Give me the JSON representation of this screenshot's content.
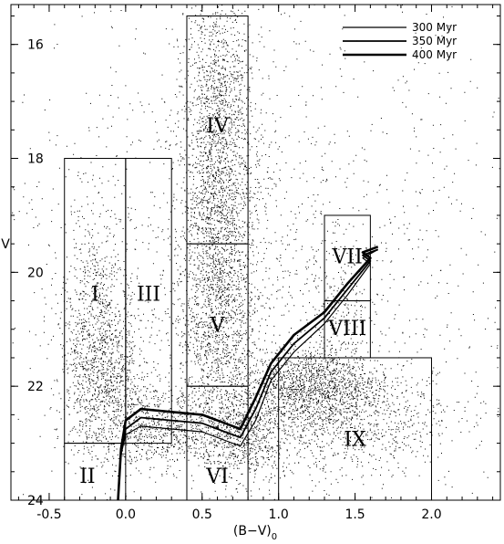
{
  "chart_data": {
    "type": "scatter",
    "title": "",
    "xlabel": "(B−V)",
    "xlabel_subscript": "0",
    "ylabel": "V",
    "xlim": [
      -0.75,
      2.45
    ],
    "ylim": [
      24.0,
      15.3
    ],
    "y_inverted": true,
    "grid": false,
    "x_ticks": [
      -0.5,
      0.0,
      0.5,
      1.0,
      1.5,
      2.0
    ],
    "x_tick_labels": [
      "-0.5",
      "0.0",
      "0.5",
      "1.0",
      "1.5",
      "2.0"
    ],
    "y_ticks": [
      16,
      18,
      20,
      22,
      24
    ],
    "y_tick_labels": [
      "16",
      "18",
      "20",
      "22",
      "24"
    ],
    "legend": {
      "position": "top-right",
      "entries": [
        {
          "label": "300 Myr",
          "weight": "thin"
        },
        {
          "label": "350 Myr",
          "weight": "medium"
        },
        {
          "label": "400 Myr",
          "weight": "thick"
        }
      ]
    },
    "regions": [
      {
        "label": "I",
        "x": [
          -0.4,
          0.0
        ],
        "y": [
          18.0,
          23.0
        ],
        "label_at": [
          -0.2,
          20.4
        ]
      },
      {
        "label": "II",
        "x": [
          -0.4,
          0.0
        ],
        "y": [
          23.0,
          24.0
        ],
        "label_at": [
          -0.25,
          23.6
        ]
      },
      {
        "label": "III",
        "x": [
          0.0,
          0.3
        ],
        "y": [
          18.0,
          23.0
        ],
        "label_at": [
          0.15,
          20.4
        ]
      },
      {
        "label": "IV",
        "x": [
          0.4,
          0.8
        ],
        "y": [
          15.5,
          19.5
        ],
        "label_at": [
          0.6,
          17.45
        ]
      },
      {
        "label": "V",
        "x": [
          0.4,
          0.8
        ],
        "y": [
          19.5,
          22.0
        ],
        "label_at": [
          0.6,
          20.95
        ]
      },
      {
        "label": "VI",
        "x": [
          0.4,
          0.8
        ],
        "y": [
          22.0,
          24.0
        ],
        "label_at": [
          0.6,
          23.6
        ]
      },
      {
        "label": "VII",
        "x": [
          1.3,
          1.6
        ],
        "y": [
          19.0,
          20.5
        ],
        "label_at": [
          1.45,
          19.75
        ]
      },
      {
        "label": "VIII",
        "x": [
          1.3,
          1.6
        ],
        "y": [
          20.5,
          21.5
        ],
        "label_at": [
          1.45,
          21.0
        ]
      },
      {
        "label": "IX",
        "x": [
          1.0,
          2.0
        ],
        "y": [
          21.5,
          24.0
        ],
        "label_at": [
          1.5,
          22.95
        ]
      }
    ],
    "series": [
      {
        "name": "300 Myr",
        "points": [
          [
            -0.05,
            24.0
          ],
          [
            -0.03,
            23.2
          ],
          [
            0.0,
            22.85
          ],
          [
            0.1,
            22.7
          ],
          [
            0.3,
            22.75
          ],
          [
            0.5,
            22.8
          ],
          [
            0.65,
            22.95
          ],
          [
            0.75,
            23.05
          ],
          [
            0.85,
            22.6
          ],
          [
            0.95,
            21.9
          ],
          [
            1.1,
            21.4
          ],
          [
            1.3,
            20.9
          ],
          [
            1.45,
            20.4
          ],
          [
            1.6,
            19.85
          ],
          [
            1.55,
            19.75
          ],
          [
            1.65,
            19.6
          ]
        ]
      },
      {
        "name": "350 Myr",
        "points": [
          [
            -0.05,
            24.0
          ],
          [
            -0.03,
            23.15
          ],
          [
            0.0,
            22.75
          ],
          [
            0.1,
            22.55
          ],
          [
            0.3,
            22.6
          ],
          [
            0.5,
            22.65
          ],
          [
            0.65,
            22.8
          ],
          [
            0.75,
            22.9
          ],
          [
            0.85,
            22.4
          ],
          [
            0.95,
            21.75
          ],
          [
            1.1,
            21.25
          ],
          [
            1.3,
            20.8
          ],
          [
            1.45,
            20.3
          ],
          [
            1.6,
            19.8
          ],
          [
            1.55,
            19.7
          ],
          [
            1.65,
            19.6
          ]
        ]
      },
      {
        "name": "400 Myr",
        "points": [
          [
            -0.05,
            24.0
          ],
          [
            -0.03,
            23.1
          ],
          [
            0.0,
            22.6
          ],
          [
            0.1,
            22.4
          ],
          [
            0.3,
            22.45
          ],
          [
            0.5,
            22.5
          ],
          [
            0.65,
            22.65
          ],
          [
            0.75,
            22.75
          ],
          [
            0.85,
            22.2
          ],
          [
            0.95,
            21.6
          ],
          [
            1.1,
            21.1
          ],
          [
            1.3,
            20.7
          ],
          [
            1.45,
            20.2
          ],
          [
            1.6,
            19.75
          ],
          [
            1.55,
            19.65
          ],
          [
            1.65,
            19.55
          ]
        ]
      }
    ],
    "point_clouds": [
      {
        "cx": 0.6,
        "cy": 16.8,
        "sx": 0.12,
        "sy": 0.9,
        "n": 900
      },
      {
        "cx": 0.6,
        "cy": 18.9,
        "sx": 0.12,
        "sy": 0.9,
        "n": 1100
      },
      {
        "cx": 0.6,
        "cy": 21.0,
        "sx": 0.13,
        "sy": 0.9,
        "n": 1100
      },
      {
        "cx": -0.15,
        "cy": 21.8,
        "sx": 0.14,
        "sy": 0.8,
        "n": 1100
      },
      {
        "cx": -0.2,
        "cy": 20.5,
        "sx": 0.12,
        "sy": 0.9,
        "n": 400
      },
      {
        "cx": 0.25,
        "cy": 22.7,
        "sx": 0.2,
        "sy": 0.35,
        "n": 700
      },
      {
        "cx": 0.75,
        "cy": 22.9,
        "sx": 0.15,
        "sy": 0.4,
        "n": 700
      },
      {
        "cx": 1.2,
        "cy": 22.0,
        "sx": 0.22,
        "sy": 0.35,
        "n": 1300
      },
      {
        "cx": 1.45,
        "cy": 22.6,
        "sx": 0.35,
        "sy": 0.5,
        "n": 900
      },
      {
        "cx": 1.4,
        "cy": 20.8,
        "sx": 0.12,
        "sy": 0.7,
        "n": 250
      },
      {
        "cx": 0.9,
        "cy": 19.5,
        "sx": 0.9,
        "sy": 2.3,
        "n": 1600
      }
    ]
  }
}
